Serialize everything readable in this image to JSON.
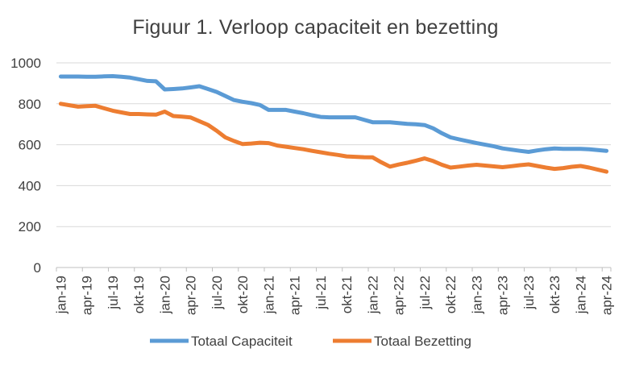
{
  "chart_data": {
    "type": "line",
    "title": "Figuur 1. Verloop capaciteit en bezetting",
    "xlabel": "",
    "ylabel": "",
    "ylim": [
      0,
      1000
    ],
    "yticks": [
      0,
      200,
      400,
      600,
      800,
      1000
    ],
    "grid": true,
    "legend_position": "bottom",
    "categories": [
      "jan-19",
      "feb-19",
      "mrt-19",
      "apr-19",
      "mei-19",
      "jun-19",
      "jul-19",
      "aug-19",
      "sep-19",
      "okt-19",
      "nov-19",
      "dec-19",
      "jan-20",
      "feb-20",
      "mrt-20",
      "apr-20",
      "mei-20",
      "jun-20",
      "jul-20",
      "aug-20",
      "sep-20",
      "okt-20",
      "nov-20",
      "dec-20",
      "jan-21",
      "feb-21",
      "mrt-21",
      "apr-21",
      "mei-21",
      "jun-21",
      "jul-21",
      "aug-21",
      "sep-21",
      "okt-21",
      "nov-21",
      "dec-21",
      "jan-22",
      "feb-22",
      "mrt-22",
      "apr-22",
      "mei-22",
      "jun-22",
      "jul-22",
      "aug-22",
      "sep-22",
      "okt-22",
      "nov-22",
      "dec-22",
      "jan-23",
      "feb-23",
      "mrt-23",
      "apr-23",
      "mei-23",
      "jun-23",
      "jul-23",
      "aug-23",
      "sep-23",
      "okt-23",
      "nov-23",
      "dec-23",
      "jan-24",
      "feb-24",
      "mrt-24",
      "apr-24"
    ],
    "tick_labels": [
      "jan-19",
      "apr-19",
      "jul-19",
      "okt-19",
      "jan-20",
      "apr-20",
      "jul-20",
      "okt-20",
      "jan-21",
      "apr-21",
      "jul-21",
      "okt-21",
      "jan-22",
      "apr-22",
      "jul-22",
      "okt-22",
      "jan-23",
      "apr-23",
      "jul-23",
      "okt-23",
      "jan-24",
      "apr-24"
    ],
    "series": [
      {
        "name": "Totaal Capaciteit",
        "color": "#5B9BD5",
        "values": [
          933,
          933,
          933,
          932,
          932,
          934,
          935,
          932,
          928,
          920,
          912,
          910,
          870,
          872,
          875,
          880,
          886,
          872,
          858,
          838,
          818,
          810,
          803,
          794,
          770,
          770,
          770,
          762,
          754,
          744,
          736,
          734,
          734,
          734,
          734,
          722,
          710,
          710,
          710,
          706,
          702,
          700,
          696,
          680,
          656,
          636,
          626,
          617,
          608,
          600,
          592,
          582,
          576,
          570,
          565,
          572,
          578,
          582,
          580,
          580,
          580,
          578,
          574,
          570
        ]
      },
      {
        "name": "Totaal Bezetting",
        "color": "#ED7D31",
        "values": [
          800,
          793,
          786,
          788,
          790,
          778,
          766,
          758,
          750,
          750,
          748,
          747,
          762,
          740,
          737,
          733,
          715,
          697,
          668,
          636,
          618,
          603,
          606,
          610,
          608,
          596,
          590,
          584,
          578,
          570,
          563,
          556,
          550,
          543,
          541,
          539,
          538,
          514,
          493,
          503,
          512,
          522,
          533,
          520,
          502,
          488,
          493,
          498,
          502,
          498,
          494,
          490,
          495,
          500,
          504,
          496,
          488,
          482,
          486,
          492,
          496,
          488,
          478,
          468
        ]
      }
    ]
  }
}
